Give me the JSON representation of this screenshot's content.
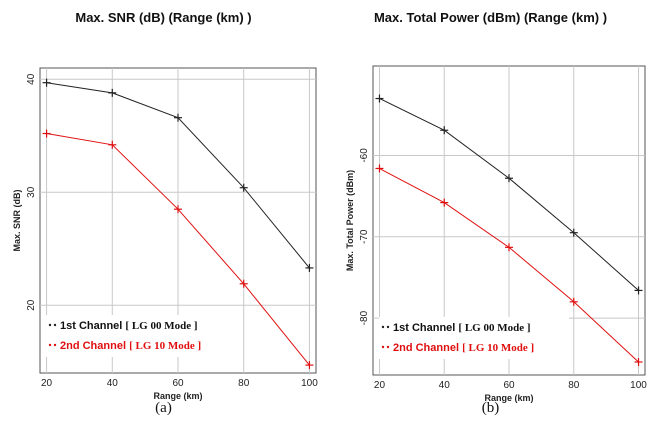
{
  "chart_data": [
    {
      "type": "line",
      "title": "Max. SNR (dB) (Range (km) )",
      "caption": "(a)",
      "xlabel": "Range (km)",
      "ylabel": "Max. SNR (dB)",
      "x": [
        20,
        40,
        60,
        80,
        100
      ],
      "xticks": [
        "20",
        "40",
        "60",
        "80",
        "100"
      ],
      "yticks": [
        20,
        30,
        40
      ],
      "ytick_labels": [
        "20",
        "30",
        "40"
      ],
      "xlim": [
        18,
        102
      ],
      "ylim": [
        14,
        41
      ],
      "grid": true,
      "legend_position": "bottom-left",
      "series": [
        {
          "name": "1st Channel",
          "mode": "[ LG 00 Mode ]",
          "color": "#222222",
          "values": [
            39.7,
            38.8,
            36.6,
            30.4,
            23.3
          ]
        },
        {
          "name": "2nd Channel",
          "mode": "[ LG 10 Mode ]",
          "color": "#e01010",
          "values": [
            35.2,
            34.2,
            28.5,
            21.9,
            14.7
          ]
        }
      ]
    },
    {
      "type": "line",
      "title": "Max. Total Power (dBm) (Range (km) )",
      "caption": "(b)",
      "xlabel": "Range (km)",
      "ylabel": "Max. Total Power (dBm)",
      "x": [
        20,
        40,
        60,
        80,
        100
      ],
      "xticks": [
        "20",
        "40",
        "60",
        "80",
        "100"
      ],
      "yticks": [
        -60,
        -70,
        -80
      ],
      "ytick_labels": [
        "-60",
        "-70",
        "-80"
      ],
      "xlim": [
        18,
        102
      ],
      "ylim": [
        -87,
        -49
      ],
      "grid": true,
      "legend_position": "bottom-left",
      "series": [
        {
          "name": "1st Channel",
          "mode": "[ LG 00 Mode ]",
          "color": "#222222",
          "values": [
            -53.0,
            -56.9,
            -62.8,
            -69.5,
            -76.6
          ]
        },
        {
          "name": "2nd Channel",
          "mode": "[ LG 10 Mode ]",
          "color": "#e01010",
          "values": [
            -61.6,
            -65.8,
            -71.3,
            -78.0,
            -85.4
          ]
        }
      ]
    }
  ]
}
